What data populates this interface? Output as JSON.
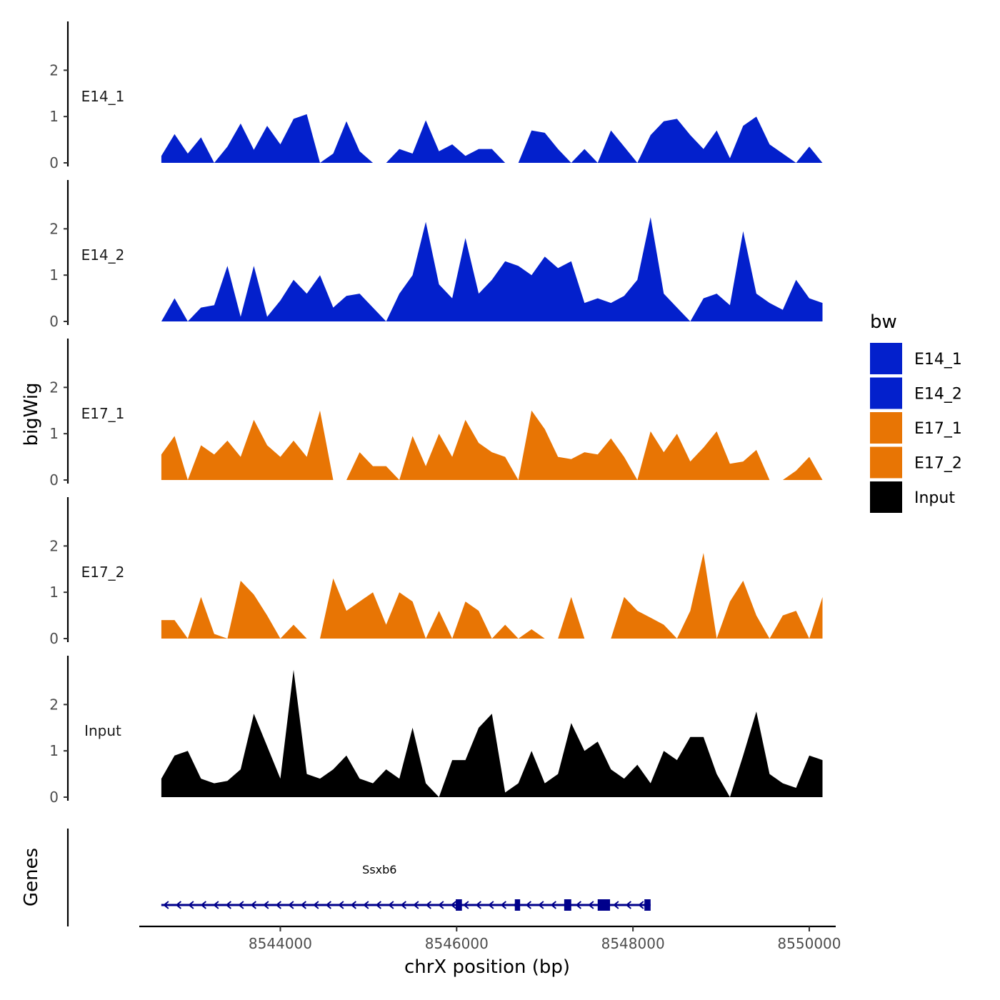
{
  "chart_data": {
    "type": "area",
    "xlabel": "chrX position (bp)",
    "ylabel": "bigWig",
    "genes_label": "Genes",
    "xlim": [
      8542400,
      8550300
    ],
    "xticks": [
      8544000,
      8546000,
      8548000,
      8550000
    ],
    "xtick_labels": [
      "8544000",
      "8546000",
      "8548000",
      "8550000"
    ],
    "ylim": [
      0,
      2.9
    ],
    "yticks": [
      0,
      1,
      2
    ],
    "ytick_labels": [
      "0",
      "1",
      "2"
    ],
    "legend": {
      "title": "bw",
      "position": "right",
      "entries": [
        {
          "label": "E14_1",
          "color": "#0320CC"
        },
        {
          "label": "E14_2",
          "color": "#0320CC"
        },
        {
          "label": "E17_1",
          "color": "#E87504"
        },
        {
          "label": "E17_2",
          "color": "#E87504"
        },
        {
          "label": "Input",
          "color": "#000000"
        }
      ]
    },
    "series": [
      {
        "name": "E14_1",
        "color": "#0320CC",
        "x": [
          8542650,
          8542800,
          8542950,
          8543100,
          8543250,
          8543400,
          8543550,
          8543700,
          8543850,
          8544000,
          8544150,
          8544300,
          8544450,
          8544600,
          8544750,
          8544900,
          8545050,
          8545200,
          8545350,
          8545500,
          8545650,
          8545800,
          8545950,
          8546100,
          8546250,
          8546400,
          8546550,
          8546700,
          8546850,
          8547000,
          8547150,
          8547300,
          8547450,
          8547600,
          8547750,
          8547900,
          8548050,
          8548200,
          8548350,
          8548500,
          8548650,
          8548800,
          8548950,
          8549100,
          8549250,
          8549400,
          8549550,
          8549700,
          8549850,
          8550000,
          8550150
        ],
        "values": [
          0.15,
          0.62,
          0.2,
          0.55,
          0.0,
          0.35,
          0.85,
          0.28,
          0.8,
          0.4,
          0.95,
          1.05,
          0.0,
          0.2,
          0.9,
          0.25,
          0.0,
          0.0,
          0.3,
          0.2,
          0.92,
          0.25,
          0.4,
          0.15,
          0.3,
          0.3,
          0.0,
          0.0,
          0.7,
          0.65,
          0.3,
          0.0,
          0.3,
          0.0,
          0.7,
          0.35,
          0.0,
          0.6,
          0.9,
          0.95,
          0.6,
          0.3,
          0.7,
          0.1,
          0.8,
          1.0,
          0.4,
          0.2,
          0.0,
          0.35,
          0.0
        ]
      },
      {
        "name": "E14_2",
        "color": "#0320CC",
        "x": [
          8542650,
          8542800,
          8542950,
          8543100,
          8543250,
          8543400,
          8543550,
          8543700,
          8543850,
          8544000,
          8544150,
          8544300,
          8544450,
          8544600,
          8544750,
          8544900,
          8545050,
          8545200,
          8545350,
          8545500,
          8545650,
          8545800,
          8545950,
          8546100,
          8546250,
          8546400,
          8546550,
          8546700,
          8546850,
          8547000,
          8547150,
          8547300,
          8547450,
          8547600,
          8547750,
          8547900,
          8548050,
          8548200,
          8548350,
          8548500,
          8548650,
          8548800,
          8548950,
          8549100,
          8549250,
          8549400,
          8549550,
          8549700,
          8549850,
          8550000,
          8550150
        ],
        "values": [
          0.0,
          0.5,
          0.0,
          0.3,
          0.35,
          1.2,
          0.1,
          1.2,
          0.1,
          0.45,
          0.9,
          0.6,
          1.0,
          0.3,
          0.55,
          0.6,
          0.3,
          0.0,
          0.6,
          1.0,
          2.15,
          0.8,
          0.5,
          1.8,
          0.6,
          0.9,
          1.3,
          1.2,
          1.0,
          1.4,
          1.15,
          1.3,
          0.4,
          0.5,
          0.4,
          0.55,
          0.9,
          2.25,
          0.6,
          0.3,
          0.0,
          0.5,
          0.6,
          0.35,
          1.95,
          0.6,
          0.4,
          0.25,
          0.9,
          0.5,
          0.4
        ]
      },
      {
        "name": "E17_1",
        "color": "#E87504",
        "x": [
          8542650,
          8542800,
          8542950,
          8543100,
          8543250,
          8543400,
          8543550,
          8543700,
          8543850,
          8544000,
          8544150,
          8544300,
          8544450,
          8544600,
          8544750,
          8544900,
          8545050,
          8545200,
          8545350,
          8545500,
          8545650,
          8545800,
          8545950,
          8546100,
          8546250,
          8546400,
          8546550,
          8546700,
          8546850,
          8547000,
          8547150,
          8547300,
          8547450,
          8547600,
          8547750,
          8547900,
          8548050,
          8548200,
          8548350,
          8548500,
          8548650,
          8548800,
          8548950,
          8549100,
          8549250,
          8549400,
          8549550,
          8549700,
          8549850,
          8550000,
          8550150
        ],
        "values": [
          0.55,
          0.95,
          0.0,
          0.75,
          0.55,
          0.85,
          0.5,
          1.3,
          0.75,
          0.5,
          0.85,
          0.5,
          1.5,
          0.0,
          0.0,
          0.6,
          0.3,
          0.3,
          0.0,
          0.95,
          0.3,
          1.0,
          0.5,
          1.3,
          0.8,
          0.6,
          0.5,
          0.0,
          1.5,
          1.1,
          0.5,
          0.45,
          0.6,
          0.55,
          0.9,
          0.5,
          0.0,
          1.05,
          0.6,
          1.0,
          0.4,
          0.7,
          1.05,
          0.35,
          0.4,
          0.65,
          0.0,
          0.0,
          0.2,
          0.5,
          0.0
        ]
      },
      {
        "name": "E17_2",
        "color": "#E87504",
        "x": [
          8542650,
          8542800,
          8542950,
          8543100,
          8543250,
          8543400,
          8543550,
          8543700,
          8543850,
          8544000,
          8544150,
          8544300,
          8544450,
          8544600,
          8544750,
          8544900,
          8545050,
          8545200,
          8545350,
          8545500,
          8545650,
          8545800,
          8545950,
          8546100,
          8546250,
          8546400,
          8546550,
          8546700,
          8546850,
          8547000,
          8547150,
          8547300,
          8547450,
          8547600,
          8547750,
          8547900,
          8548050,
          8548200,
          8548350,
          8548500,
          8548650,
          8548800,
          8548950,
          8549100,
          8549250,
          8549400,
          8549550,
          8549700,
          8549850,
          8550000,
          8550150
        ],
        "values": [
          0.4,
          0.4,
          0.0,
          0.9,
          0.1,
          0.0,
          1.25,
          0.95,
          0.5,
          0.0,
          0.3,
          0.0,
          0.0,
          1.3,
          0.6,
          0.8,
          1.0,
          0.3,
          1.0,
          0.8,
          0.0,
          0.6,
          0.0,
          0.8,
          0.6,
          0.0,
          0.3,
          0.0,
          0.2,
          0.0,
          0.0,
          0.9,
          0.0,
          0.0,
          0.0,
          0.9,
          0.6,
          0.45,
          0.3,
          0.0,
          0.6,
          1.85,
          0.0,
          0.8,
          1.25,
          0.5,
          0.0,
          0.5,
          0.6,
          0.0,
          0.9
        ]
      },
      {
        "name": "Input",
        "color": "#000000",
        "x": [
          8542650,
          8542800,
          8542950,
          8543100,
          8543250,
          8543400,
          8543550,
          8543700,
          8543850,
          8544000,
          8544150,
          8544300,
          8544450,
          8544600,
          8544750,
          8544900,
          8545050,
          8545200,
          8545350,
          8545500,
          8545650,
          8545800,
          8545950,
          8546100,
          8546250,
          8546400,
          8546550,
          8546700,
          8546850,
          8547000,
          8547150,
          8547300,
          8547450,
          8547600,
          8547750,
          8547900,
          8548050,
          8548200,
          8548350,
          8548500,
          8548650,
          8548800,
          8548950,
          8549100,
          8549250,
          8549400,
          8549550,
          8549700,
          8549850,
          8550000,
          8550150
        ],
        "values": [
          0.4,
          0.9,
          1.0,
          0.4,
          0.3,
          0.35,
          0.6,
          1.8,
          1.1,
          0.4,
          2.75,
          0.5,
          0.4,
          0.6,
          0.9,
          0.4,
          0.3,
          0.6,
          0.4,
          1.5,
          0.3,
          0.0,
          0.8,
          0.8,
          1.5,
          1.8,
          0.1,
          0.3,
          1.0,
          0.3,
          0.5,
          1.6,
          1.0,
          1.2,
          0.6,
          0.4,
          0.7,
          0.3,
          1.0,
          0.8,
          1.3,
          1.3,
          0.5,
          0.0,
          0.9,
          1.85,
          0.5,
          0.3,
          0.2,
          0.9,
          0.8
        ]
      }
    ],
    "genes": [
      {
        "name": "Ssxb6",
        "strand": "-",
        "start": 8542650,
        "end": 8548200,
        "color": "#00008B",
        "exons": [
          [
            8545990,
            8546060
          ],
          [
            8546660,
            8546720
          ],
          [
            8547220,
            8547300
          ],
          [
            8547600,
            8547740
          ],
          [
            8548130,
            8548200
          ]
        ]
      }
    ]
  }
}
